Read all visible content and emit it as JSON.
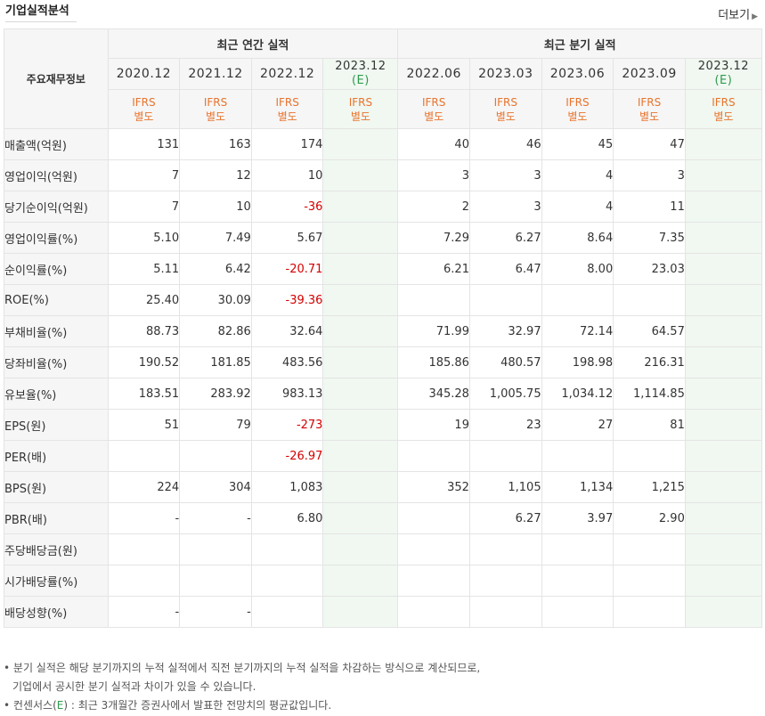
{
  "header": {
    "title": "기업실적분석",
    "more_label": "더보기"
  },
  "table": {
    "row_header": "주요재무정보",
    "group_annual": "최근 연간 실적",
    "group_quarter": "최근 분기 실적",
    "annual_periods": [
      "2020.12",
      "2021.12",
      "2022.12",
      "2023.12"
    ],
    "quarter_periods": [
      "2022.06",
      "2023.03",
      "2023.06",
      "2023.09",
      "2023.12"
    ],
    "estimate_mark": "(E)",
    "ifrs_line1": "IFRS",
    "ifrs_line2": "별도",
    "rows": [
      {
        "label": "매출액(억원)",
        "values": [
          "131",
          "163",
          "174",
          "",
          "40",
          "46",
          "45",
          "47",
          ""
        ]
      },
      {
        "label": "영업이익(억원)",
        "values": [
          "7",
          "12",
          "10",
          "",
          "3",
          "3",
          "4",
          "3",
          ""
        ]
      },
      {
        "label": "당기순이익(억원)",
        "values": [
          "7",
          "10",
          "-36",
          "",
          "2",
          "3",
          "4",
          "11",
          ""
        ]
      },
      {
        "label": "영업이익률(%)",
        "values": [
          "5.10",
          "7.49",
          "5.67",
          "",
          "7.29",
          "6.27",
          "8.64",
          "7.35",
          ""
        ]
      },
      {
        "label": "순이익률(%)",
        "values": [
          "5.11",
          "6.42",
          "-20.71",
          "",
          "6.21",
          "6.47",
          "8.00",
          "23.03",
          ""
        ]
      },
      {
        "label": "ROE(%)",
        "values": [
          "25.40",
          "30.09",
          "-39.36",
          "",
          "",
          "",
          "",
          "",
          ""
        ]
      },
      {
        "label": "부채비율(%)",
        "values": [
          "88.73",
          "82.86",
          "32.64",
          "",
          "71.99",
          "32.97",
          "72.14",
          "64.57",
          ""
        ]
      },
      {
        "label": "당좌비율(%)",
        "values": [
          "190.52",
          "181.85",
          "483.56",
          "",
          "185.86",
          "480.57",
          "198.98",
          "216.31",
          ""
        ]
      },
      {
        "label": "유보율(%)",
        "values": [
          "183.51",
          "283.92",
          "983.13",
          "",
          "345.28",
          "1,005.75",
          "1,034.12",
          "1,114.85",
          ""
        ]
      },
      {
        "label": "EPS(원)",
        "values": [
          "51",
          "79",
          "-273",
          "",
          "19",
          "23",
          "27",
          "81",
          ""
        ]
      },
      {
        "label": "PER(배)",
        "values": [
          "",
          "",
          "-26.97",
          "",
          "",
          "",
          "",
          "",
          ""
        ]
      },
      {
        "label": "BPS(원)",
        "values": [
          "224",
          "304",
          "1,083",
          "",
          "352",
          "1,105",
          "1,134",
          "1,215",
          ""
        ]
      },
      {
        "label": "PBR(배)",
        "values": [
          "-",
          "-",
          "6.80",
          "",
          "",
          "6.27",
          "3.97",
          "2.90",
          ""
        ]
      },
      {
        "label": "주당배당금(원)",
        "values": [
          "",
          "",
          "",
          "",
          "",
          "",
          "",
          "",
          ""
        ]
      },
      {
        "label": "시가배당률(%)",
        "values": [
          "",
          "",
          "",
          "",
          "",
          "",
          "",
          "",
          ""
        ]
      },
      {
        "label": "배당성향(%)",
        "values": [
          "-",
          "-",
          "",
          "",
          "",
          "",
          "",
          "",
          ""
        ]
      }
    ]
  },
  "notes": {
    "line1": "분기 실적은 해당 분기까지의 누적 실적에서 직전 분기까지의 누적 실적을 차감하는 방식으로 계산되므로,",
    "line2": "기업에서 공시한 분기 실적과 차이가 있을 수 있습니다.",
    "line3_prefix": "컨센서스(",
    "line3_e": "E",
    "line3_suffix": ") : 최근 3개월간 증권사에서 발표한 전망치의 평균값입니다."
  },
  "colors": {
    "ifrs": "#e8732c",
    "negative": "#d40000",
    "estimate": "#2e9b4e",
    "estimate_bg": "#f0f8f1"
  }
}
